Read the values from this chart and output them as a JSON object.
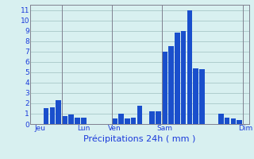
{
  "title": "",
  "xlabel": "Précipitations 24h ( mm )",
  "background_color": "#d8f0f0",
  "bar_color": "#1a4fcc",
  "grid_color": "#a8c8c8",
  "vline_color": "#808090",
  "ylim": [
    0,
    11.5
  ],
  "yticks": [
    0,
    1,
    2,
    3,
    4,
    5,
    6,
    7,
    8,
    9,
    10,
    11
  ],
  "values": [
    0,
    0,
    1.5,
    1.6,
    2.3,
    0.8,
    0.9,
    0.6,
    0.6,
    0,
    0,
    0,
    0,
    0.5,
    1.0,
    0.5,
    0.6,
    1.8,
    0,
    1.2,
    1.2,
    7.0,
    7.5,
    8.8,
    9.0,
    11.0,
    5.4,
    5.3,
    0,
    0,
    1.0,
    0.6,
    0.5,
    0.4,
    0
  ],
  "day_labels": [
    "Jeu",
    "Lun",
    "Ven",
    "Sam",
    "Dim"
  ],
  "day_positions": [
    1,
    8,
    13,
    21,
    34
  ],
  "vline_positions": [
    4.5,
    12.5,
    20.5,
    33.5
  ],
  "text_color": "#1a3adb",
  "xlabel_fontsize": 8,
  "tick_fontsize": 6.5
}
